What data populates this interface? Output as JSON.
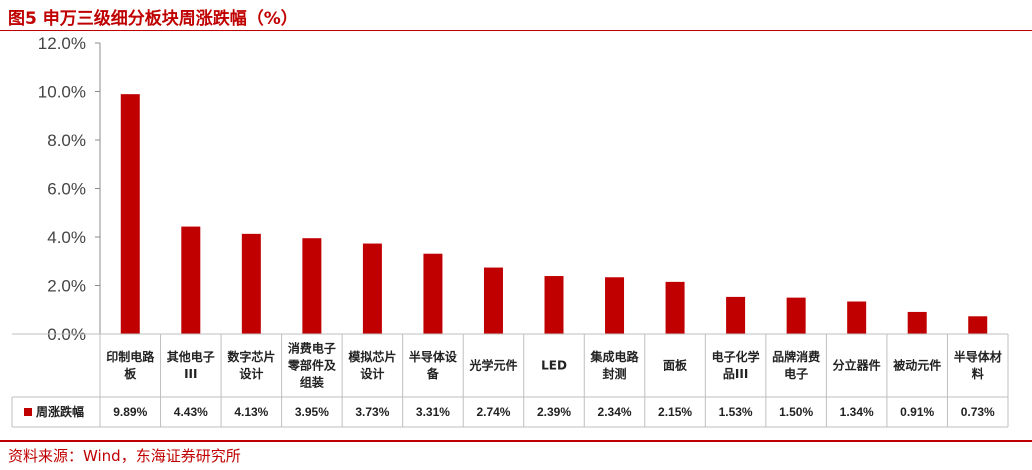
{
  "header": {
    "title": "图5 申万三级细分板块周涨跌幅（%）"
  },
  "footer": {
    "source": "资料来源：Wind，东海证券研究所"
  },
  "colors": {
    "accent": "#c00000",
    "bar": "#c00000",
    "grid": "#bfbfbf"
  },
  "chart_data": {
    "type": "bar",
    "categories": [
      [
        "印制电路",
        "板"
      ],
      [
        "其他电子",
        "III"
      ],
      [
        "数字芯片",
        "设计"
      ],
      [
        "消费电子",
        "零部件及",
        "组装"
      ],
      [
        "模拟芯片",
        "设计"
      ],
      [
        "半导体设",
        "备"
      ],
      [
        "光学元件"
      ],
      [
        "LED"
      ],
      [
        "集成电路",
        "封测"
      ],
      [
        "面板"
      ],
      [
        "电子化学",
        "品III"
      ],
      [
        "品牌消费",
        "电子"
      ],
      [
        "分立器件"
      ],
      [
        "被动元件"
      ],
      [
        "半导体材",
        "料"
      ]
    ],
    "series": [
      {
        "name": "周涨跌幅",
        "values": [
          9.89,
          4.43,
          4.13,
          3.95,
          3.73,
          3.31,
          2.74,
          2.39,
          2.34,
          2.15,
          1.53,
          1.5,
          1.34,
          0.91,
          0.73
        ],
        "labels": [
          "9.89%",
          "4.43%",
          "4.13%",
          "3.95%",
          "3.73%",
          "3.31%",
          "2.74%",
          "2.39%",
          "2.34%",
          "2.15%",
          "1.53%",
          "1.50%",
          "1.34%",
          "0.91%",
          "0.73%"
        ]
      }
    ],
    "yticks": [
      "0.0%",
      "2.0%",
      "4.0%",
      "6.0%",
      "8.0%",
      "10.0%",
      "12.0%"
    ],
    "ylim": [
      0,
      12
    ],
    "grid": false,
    "legend": "data-table-left"
  }
}
